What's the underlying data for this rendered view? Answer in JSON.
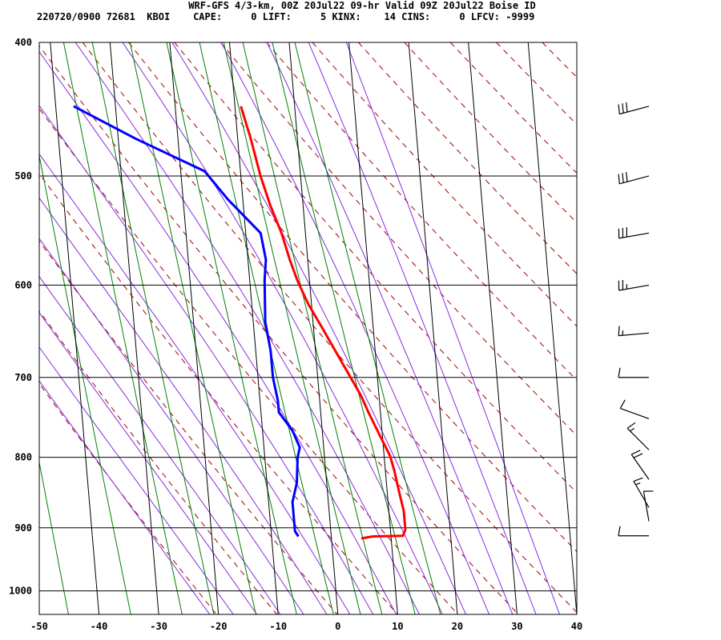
{
  "header": {
    "line1": "WRF-GFS 4/3-km, 00Z 20Jul22 09-hr Valid 09Z 20Jul22 Boise ID",
    "line2": "220720/0900 72681  KBOI    CAPE:     0 LIFT:     5 KINX:    14 CINS:     0 LFCV: -9999"
  },
  "chart_data": {
    "type": "line",
    "title": "WRF-GFS 4/3-km, 00Z 20Jul22 09-hr Valid 09Z 20Jul22 Boise ID",
    "xlabel": "",
    "ylabel": "",
    "xlim": [
      -50,
      40
    ],
    "ylim": [
      1040,
      400
    ],
    "y_scale": "log",
    "grid": true,
    "x_ticks": [
      -50,
      -40,
      -30,
      -20,
      -10,
      0,
      10,
      20,
      30,
      40
    ],
    "x_tick_labels": [
      "-50",
      "-40",
      "-30",
      "-20",
      "-10",
      "0",
      "10",
      "20",
      "30",
      "40"
    ],
    "y_ticks": [
      400,
      500,
      600,
      700,
      800,
      900,
      1000
    ],
    "y_tick_labels": [
      "400",
      "500",
      "600",
      "700",
      "800",
      "900",
      "1000"
    ],
    "series": [
      {
        "color": "#ff0000",
        "points": [
          [
            -9.0,
            445
          ],
          [
            -7.8,
            470
          ],
          [
            -6.7,
            500
          ],
          [
            -5.5,
            525
          ],
          [
            -4.0,
            550
          ],
          [
            -3.0,
            575
          ],
          [
            -2.0,
            596
          ],
          [
            -0.5,
            620
          ],
          [
            1.5,
            645
          ],
          [
            3.5,
            672
          ],
          [
            5.5,
            700
          ],
          [
            7.0,
            722
          ],
          [
            8.0,
            742
          ],
          [
            9.5,
            770
          ],
          [
            11.0,
            798
          ],
          [
            11.5,
            818
          ],
          [
            12.0,
            848
          ],
          [
            12.5,
            875
          ],
          [
            12.5,
            903
          ],
          [
            12.0,
            912
          ],
          [
            7.0,
            913
          ],
          [
            5.0,
            916
          ]
        ]
      },
      {
        "color": "#0000ff",
        "points": [
          [
            -37.0,
            445
          ],
          [
            -27.0,
            470
          ],
          [
            -16.0,
            496
          ],
          [
            -12.5,
            520
          ],
          [
            -7.5,
            550
          ],
          [
            -7.0,
            575
          ],
          [
            -7.5,
            595
          ],
          [
            -8.0,
            638
          ],
          [
            -7.5,
            670
          ],
          [
            -7.5,
            700
          ],
          [
            -7.0,
            728
          ],
          [
            -7.0,
            742
          ],
          [
            -5.0,
            765
          ],
          [
            -4.0,
            787
          ],
          [
            -4.5,
            800
          ],
          [
            -5.0,
            835
          ],
          [
            -6.0,
            862
          ],
          [
            -6.0,
            880
          ],
          [
            -6.0,
            905
          ],
          [
            -5.5,
            913
          ]
        ]
      }
    ],
    "wind_barbs": [
      {
        "p": 445,
        "dir": 255,
        "spd": 30
      },
      {
        "p": 500,
        "dir": 255,
        "spd": 30
      },
      {
        "p": 550,
        "dir": 260,
        "spd": 30
      },
      {
        "p": 600,
        "dir": 260,
        "spd": 25
      },
      {
        "p": 650,
        "dir": 265,
        "spd": 15
      },
      {
        "p": 700,
        "dir": 270,
        "spd": 10
      },
      {
        "p": 750,
        "dir": 290,
        "spd": 10
      },
      {
        "p": 790,
        "dir": 315,
        "spd": 15
      },
      {
        "p": 830,
        "dir": 325,
        "spd": 20
      },
      {
        "p": 870,
        "dir": 330,
        "spd": 15
      },
      {
        "p": 890,
        "dir": 350,
        "spd": 10
      },
      {
        "p": 912,
        "dir": 270,
        "spd": 10
      }
    ]
  }
}
